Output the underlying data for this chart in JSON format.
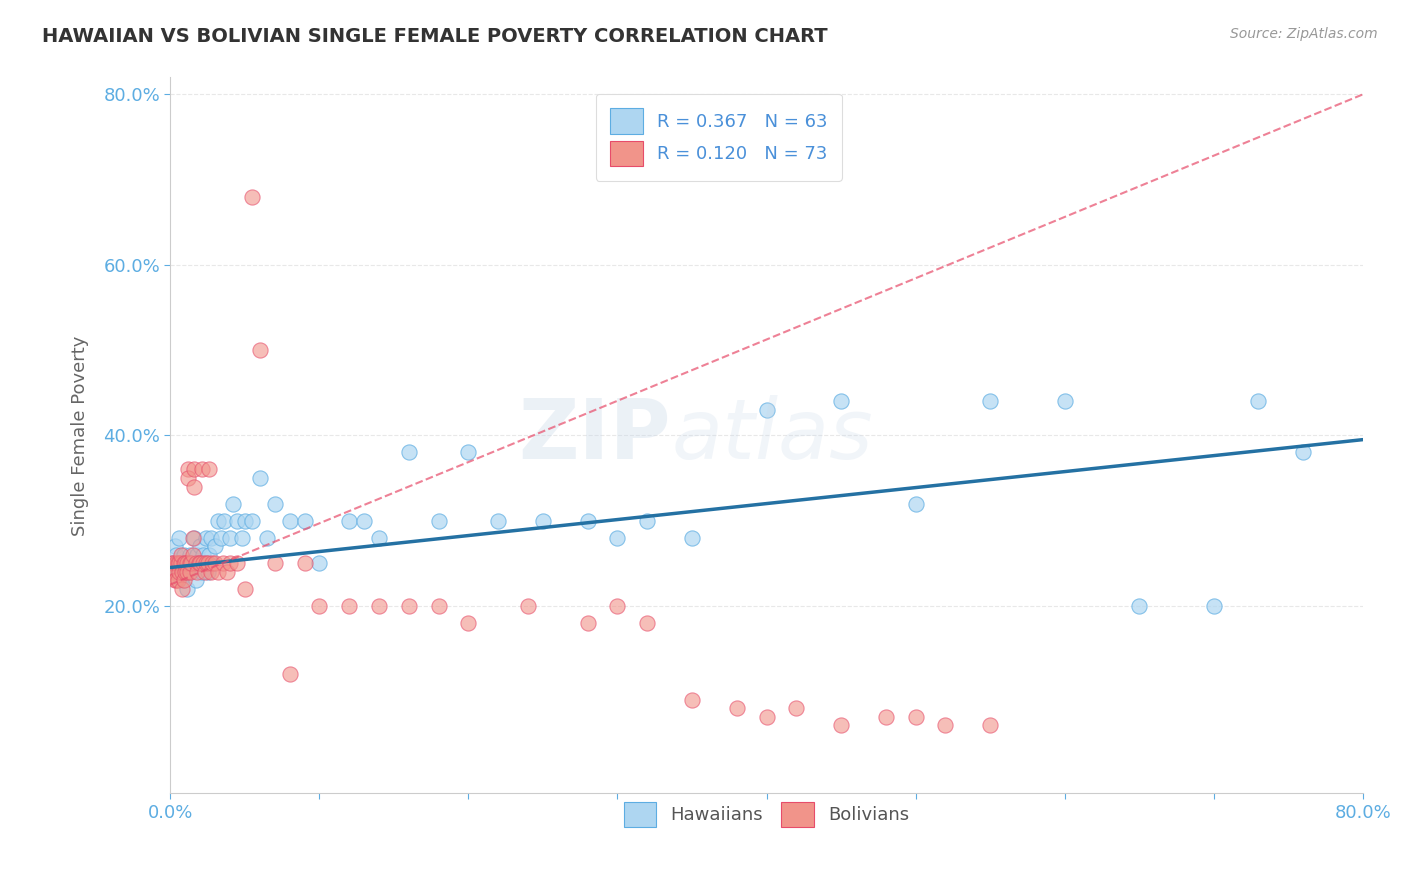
{
  "title": "HAWAIIAN VS BOLIVIAN SINGLE FEMALE POVERTY CORRELATION CHART",
  "source": "Source: ZipAtlas.com",
  "ylabel": "Single Female Poverty",
  "xlim": [
    0.0,
    0.8
  ],
  "ylim": [
    -0.02,
    0.82
  ],
  "x_ticks": [
    0.0,
    0.8
  ],
  "x_tick_labels": [
    "0.0%",
    "80.0%"
  ],
  "y_ticks": [
    0.2,
    0.4,
    0.6,
    0.8
  ],
  "y_tick_labels": [
    "20.0%",
    "40.0%",
    "60.0%",
    "80.0%"
  ],
  "hawaiian_color": "#AED6F1",
  "bolivian_color": "#F1948A",
  "hawaiian_edge_color": "#5DADE2",
  "bolivian_edge_color": "#E74C6A",
  "hawaiian_line_color": "#2471A3",
  "bolivian_line_color": "#E74C6A",
  "R_hawaiian": 0.367,
  "N_hawaiian": 63,
  "R_bolivian": 0.12,
  "N_bolivian": 73,
  "background_color": "#FFFFFF",
  "grid_color": "#E8E8E8",
  "watermark": "ZIPatlas",
  "tick_color": "#5DADE2",
  "hawaiian_x": [
    0.002,
    0.003,
    0.004,
    0.005,
    0.006,
    0.007,
    0.008,
    0.009,
    0.01,
    0.011,
    0.012,
    0.013,
    0.014,
    0.015,
    0.016,
    0.017,
    0.018,
    0.019,
    0.02,
    0.021,
    0.022,
    0.023,
    0.024,
    0.025,
    0.026,
    0.027,
    0.03,
    0.032,
    0.034,
    0.036,
    0.04,
    0.042,
    0.045,
    0.048,
    0.05,
    0.055,
    0.06,
    0.065,
    0.07,
    0.08,
    0.09,
    0.1,
    0.12,
    0.13,
    0.14,
    0.16,
    0.18,
    0.2,
    0.22,
    0.25,
    0.28,
    0.3,
    0.32,
    0.35,
    0.4,
    0.45,
    0.5,
    0.55,
    0.6,
    0.65,
    0.7,
    0.73,
    0.76
  ],
  "hawaiian_y": [
    0.25,
    0.27,
    0.26,
    0.24,
    0.28,
    0.23,
    0.25,
    0.26,
    0.24,
    0.22,
    0.25,
    0.26,
    0.24,
    0.25,
    0.28,
    0.23,
    0.26,
    0.25,
    0.27,
    0.24,
    0.26,
    0.25,
    0.28,
    0.24,
    0.26,
    0.28,
    0.27,
    0.3,
    0.28,
    0.3,
    0.28,
    0.32,
    0.3,
    0.28,
    0.3,
    0.3,
    0.35,
    0.28,
    0.32,
    0.3,
    0.3,
    0.25,
    0.3,
    0.3,
    0.28,
    0.38,
    0.3,
    0.38,
    0.3,
    0.3,
    0.3,
    0.28,
    0.3,
    0.28,
    0.43,
    0.44,
    0.32,
    0.44,
    0.44,
    0.2,
    0.2,
    0.44,
    0.38
  ],
  "bolivian_x": [
    0.001,
    0.002,
    0.002,
    0.003,
    0.003,
    0.004,
    0.004,
    0.005,
    0.005,
    0.006,
    0.006,
    0.007,
    0.007,
    0.008,
    0.008,
    0.009,
    0.009,
    0.01,
    0.01,
    0.011,
    0.011,
    0.012,
    0.012,
    0.013,
    0.013,
    0.014,
    0.015,
    0.015,
    0.016,
    0.016,
    0.017,
    0.018,
    0.019,
    0.02,
    0.021,
    0.022,
    0.023,
    0.024,
    0.025,
    0.026,
    0.027,
    0.028,
    0.03,
    0.032,
    0.035,
    0.038,
    0.04,
    0.045,
    0.05,
    0.055,
    0.06,
    0.07,
    0.08,
    0.09,
    0.1,
    0.12,
    0.14,
    0.16,
    0.18,
    0.2,
    0.24,
    0.28,
    0.3,
    0.32,
    0.35,
    0.38,
    0.4,
    0.42,
    0.45,
    0.48,
    0.5,
    0.52,
    0.55
  ],
  "bolivian_y": [
    0.25,
    0.24,
    0.25,
    0.24,
    0.23,
    0.25,
    0.23,
    0.25,
    0.23,
    0.25,
    0.24,
    0.25,
    0.26,
    0.24,
    0.22,
    0.25,
    0.23,
    0.25,
    0.24,
    0.25,
    0.24,
    0.36,
    0.35,
    0.25,
    0.24,
    0.25,
    0.28,
    0.26,
    0.36,
    0.34,
    0.25,
    0.24,
    0.25,
    0.25,
    0.36,
    0.25,
    0.24,
    0.25,
    0.25,
    0.36,
    0.24,
    0.25,
    0.25,
    0.24,
    0.25,
    0.24,
    0.25,
    0.25,
    0.22,
    0.68,
    0.5,
    0.25,
    0.12,
    0.25,
    0.2,
    0.2,
    0.2,
    0.2,
    0.2,
    0.18,
    0.2,
    0.18,
    0.2,
    0.18,
    0.09,
    0.08,
    0.07,
    0.08,
    0.06,
    0.07,
    0.07,
    0.06,
    0.06
  ]
}
